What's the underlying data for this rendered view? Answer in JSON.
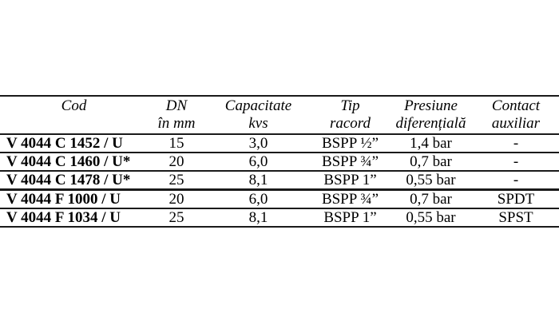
{
  "colors": {
    "text": "#000000",
    "rule": "#1a1a1a",
    "background": "#ffffff"
  },
  "table": {
    "columns": [
      {
        "line1": "Cod",
        "line2": ""
      },
      {
        "line1": "DN",
        "line2": "în mm"
      },
      {
        "line1": "Capacitate",
        "line2": "kvs"
      },
      {
        "line1": "Tip",
        "line2": "racord"
      },
      {
        "line1": "Presiune",
        "line2": "diferențială"
      },
      {
        "line1": "Contact",
        "line2": "auxiliar"
      }
    ],
    "rows": [
      {
        "cod": "V 4044 C 1452 / U",
        "dn": "15",
        "kvs": "3,0",
        "racord": "BSPP ½”",
        "presiune": "1,4 bar",
        "contact": "-"
      },
      {
        "cod": "V 4044 C 1460 / U*",
        "dn": "20",
        "kvs": "6,0",
        "racord": "BSPP ¾”",
        "presiune": "0,7 bar",
        "contact": "-"
      },
      {
        "cod": "V 4044 C 1478 / U*",
        "dn": "25",
        "kvs": "8,1",
        "racord": "BSPP 1”",
        "presiune": "0,55 bar",
        "contact": "-"
      },
      {
        "cod": "V 4044 F 1000 / U",
        "dn": "20",
        "kvs": "6,0",
        "racord": "BSPP ¾”",
        "presiune": "0,7 bar",
        "contact": "SPDT"
      },
      {
        "cod": "V 4044 F 1034 / U",
        "dn": "25",
        "kvs": "8,1",
        "racord": "BSPP 1”",
        "presiune": "0,55 bar",
        "contact": "SPST"
      }
    ]
  }
}
